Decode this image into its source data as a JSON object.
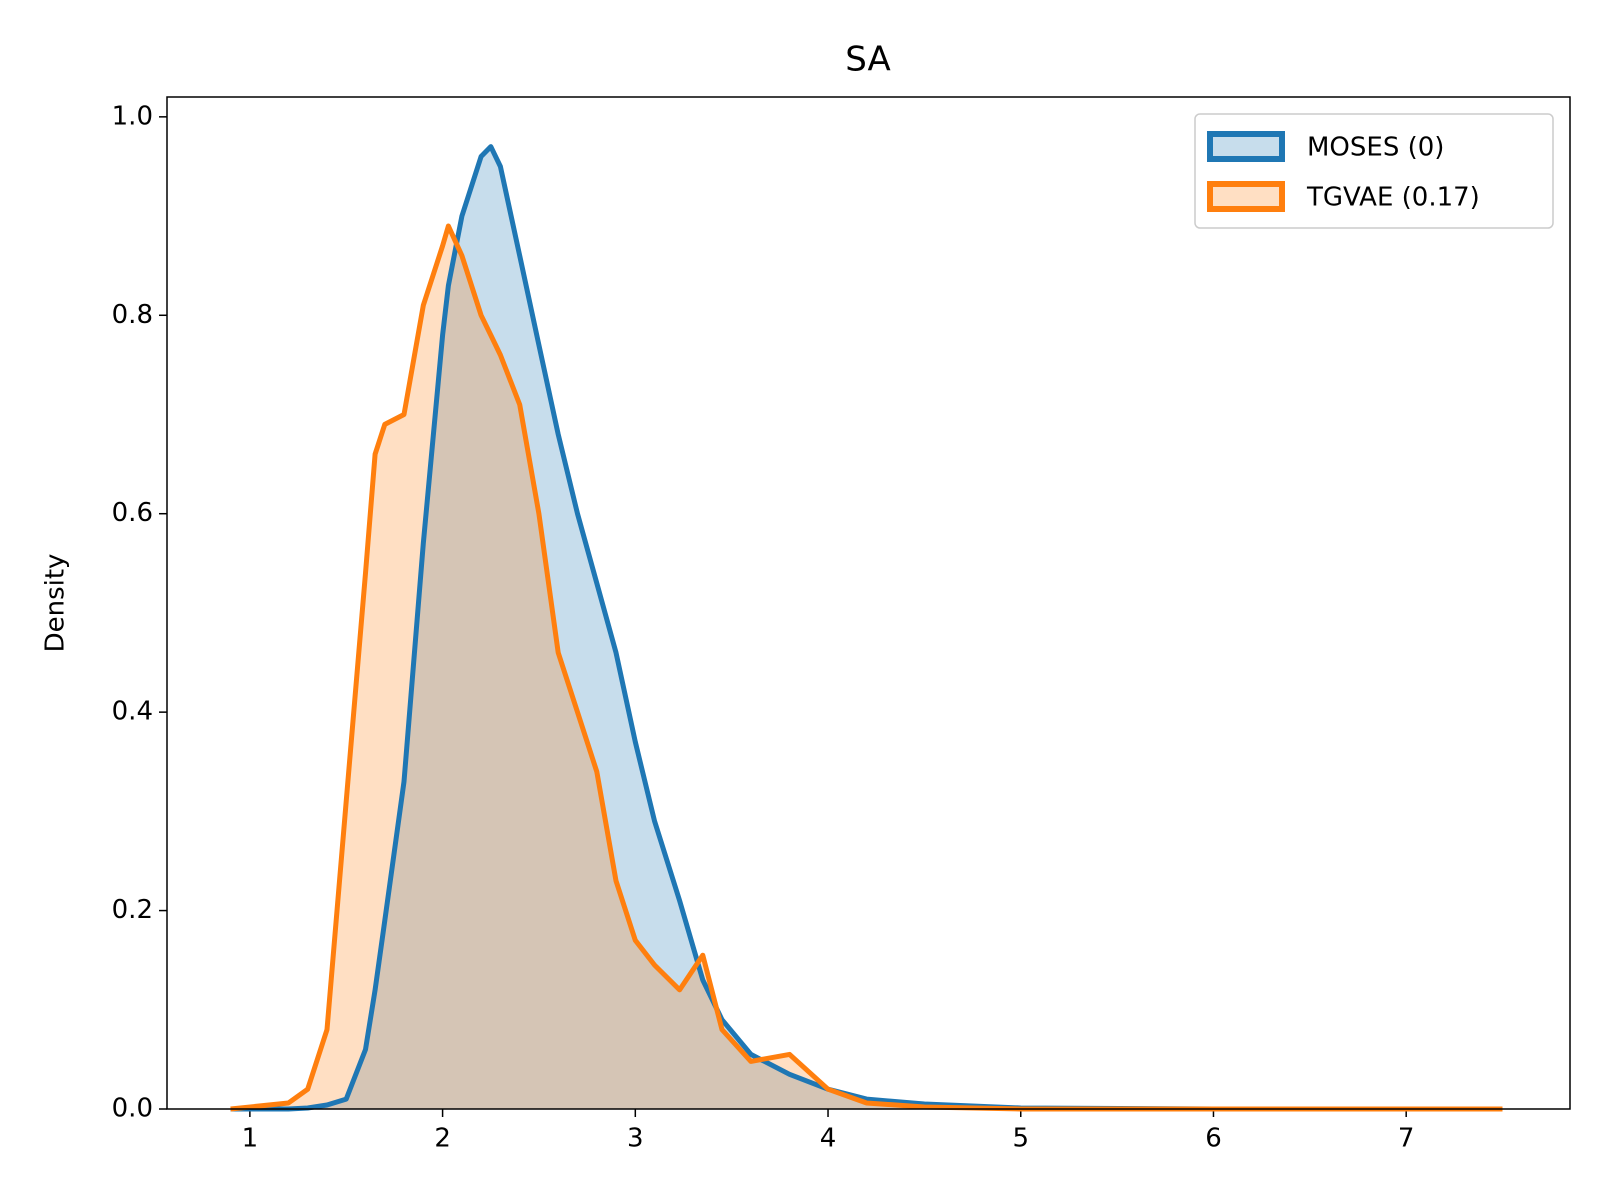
{
  "chart_data": {
    "type": "kde",
    "title": "SA",
    "y_label": "Density",
    "x": [
      0.9,
      1.2,
      1.3,
      1.4,
      1.5,
      1.6,
      1.65,
      1.7,
      1.8,
      1.9,
      2.0,
      2.03,
      2.1,
      2.2,
      2.25,
      2.3,
      2.4,
      2.5,
      2.6,
      2.7,
      2.8,
      2.9,
      3.0,
      3.1,
      3.23,
      3.35,
      3.45,
      3.6,
      3.8,
      4.0,
      4.2,
      4.5,
      5.0,
      6.0,
      7.5
    ],
    "series": [
      {
        "name": "MOSES (0)",
        "color": "#1f77b4",
        "values": [
          0,
          0,
          0.001,
          0.004,
          0.01,
          0.06,
          0.12,
          0.19,
          0.33,
          0.57,
          0.78,
          0.83,
          0.9,
          0.96,
          0.97,
          0.95,
          0.86,
          0.77,
          0.68,
          0.6,
          0.53,
          0.46,
          0.37,
          0.29,
          0.21,
          0.13,
          0.09,
          0.055,
          0.035,
          0.02,
          0.01,
          0.005,
          0.001,
          0,
          0
        ]
      },
      {
        "name": "TGVAE (0.17)",
        "color": "#ff7f0e",
        "values": [
          0,
          0.006,
          0.02,
          0.08,
          0.31,
          0.54,
          0.66,
          0.69,
          0.7,
          0.81,
          0.87,
          0.89,
          0.86,
          0.8,
          0.78,
          0.76,
          0.71,
          0.6,
          0.46,
          0.4,
          0.34,
          0.23,
          0.17,
          0.145,
          0.12,
          0.155,
          0.08,
          0.048,
          0.055,
          0.02,
          0.006,
          0.002,
          0,
          0,
          0
        ]
      }
    ],
    "xlim": [
      0.57,
      7.85
    ],
    "ylim": [
      0,
      1.02
    ],
    "xticks": [
      1,
      2,
      3,
      4,
      5,
      6,
      7
    ],
    "yticks": [
      {
        "value": 0,
        "label": "0.0"
      },
      0.2,
      0.4,
      0.6,
      0.8,
      {
        "value": 1,
        "label": "1.0"
      }
    ],
    "legend": "upper right",
    "fill_alpha": 0.25
  }
}
